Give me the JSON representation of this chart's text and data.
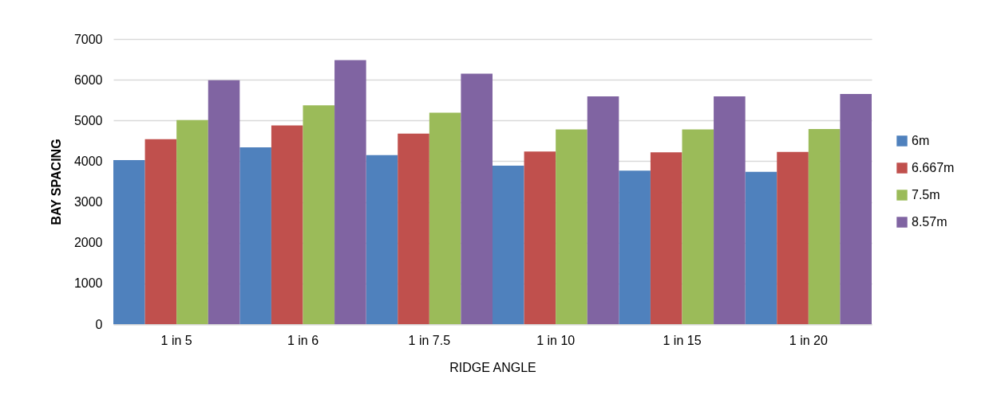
{
  "chart_data": {
    "type": "bar",
    "xlabel": "RIDGE ANGLE",
    "ylabel": "BAY SPACING",
    "categories": [
      "1 in 5",
      "1 in 6",
      "1 in 7.5",
      "1 in 10",
      "1 in 15",
      "1 in 20"
    ],
    "series": [
      {
        "name": "6m",
        "color": "#4f81bd",
        "values": [
          4030,
          4340,
          4150,
          3890,
          3770,
          3740
        ]
      },
      {
        "name": "6.667m",
        "color": "#c0504d",
        "values": [
          4540,
          4880,
          4680,
          4240,
          4220,
          4230
        ]
      },
      {
        "name": "7.5m",
        "color": "#9bbb59",
        "values": [
          5010,
          5370,
          5190,
          4780,
          4780,
          4790
        ]
      },
      {
        "name": "8.57m",
        "color": "#8064a2",
        "values": [
          5990,
          6480,
          6150,
          5590,
          5590,
          5650
        ]
      }
    ],
    "ylim": [
      0,
      7000
    ],
    "yticks": [
      0,
      1000,
      2000,
      3000,
      4000,
      5000,
      6000,
      7000
    ],
    "grid": "y",
    "legend": "right"
  }
}
